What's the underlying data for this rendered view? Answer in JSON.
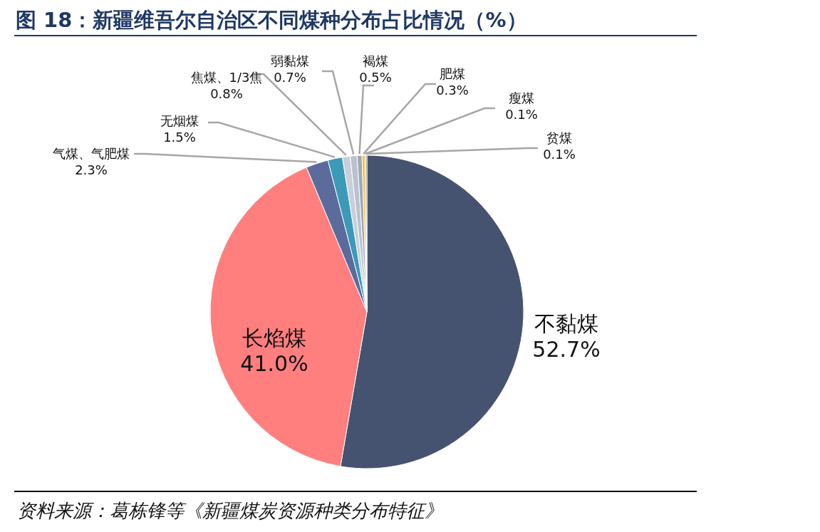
{
  "chart_data": {
    "type": "pie",
    "title": "图 18：新疆维吾尔自治区不同煤种分布占比情况（%）",
    "categories": [
      "不黏煤",
      "长焰煤",
      "气煤、气肥煤",
      "无烟煤",
      "焦煤、1/3焦",
      "弱黏煤",
      "褐煤",
      "肥煤",
      "瘦煤",
      "贫煤"
    ],
    "values": [
      52.7,
      41.0,
      2.3,
      1.5,
      0.8,
      0.7,
      0.5,
      0.3,
      0.1,
      0.1
    ],
    "colors": [
      "#465370",
      "#ff7f7f",
      "#5b6b9c",
      "#3b9ab8",
      "#c9cfd8",
      "#b8c2d0",
      "#a0a8b8",
      "#f4c242",
      "#c00000",
      "#3d2b1f"
    ],
    "value_labels": [
      "52.7%",
      "41.0%",
      "2.3%",
      "1.5%",
      "0.8%",
      "0.7%",
      "0.5%",
      "0.3%",
      "0.1%",
      "0.1%"
    ],
    "annotations": [
      "资料来源：葛栋锋等《新疆煤炭资源种类分布特征》"
    ]
  }
}
